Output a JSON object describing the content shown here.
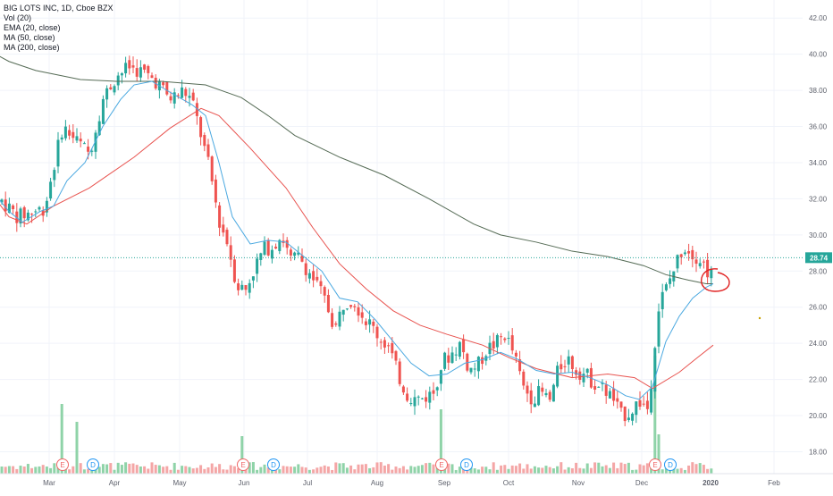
{
  "legend": {
    "title": "BIG LOTS INC, 1D, Cboe BZX",
    "vol": "Vol (20)",
    "ema": "EMA (20, close)",
    "ma50": "MA (50, close)",
    "ma200": "MA (200, close)"
  },
  "colors": {
    "up": "#26a69a",
    "down": "#ef5350",
    "vol_up": "#8fd3a8",
    "vol_down": "#f4a6a6",
    "ema": "#4aa8e0",
    "ma50": "#e8534f",
    "ma200": "#556b55",
    "last_price_line": "#26a69a",
    "grid": "#f0f3fa",
    "annotation": "#e02020"
  },
  "chart_data": {
    "type": "candlestick",
    "title": "BIG LOTS INC, 1D, Cboe BZX",
    "ylim": [
      17,
      43
    ],
    "y_ticks": [
      "18.00",
      "20.00",
      "22.00",
      "24.00",
      "26.00",
      "28.00",
      "30.00",
      "32.00",
      "34.00",
      "36.00",
      "38.00",
      "40.00",
      "42.00"
    ],
    "x_ticks": [
      "Mar",
      "Apr",
      "May",
      "Jun",
      "Jul",
      "Aug",
      "Sep",
      "Oct",
      "Nov",
      "Dec",
      "2020",
      "Feb"
    ],
    "last_price": "28.74",
    "events": [
      {
        "label": "E",
        "date": "Mar 6"
      },
      {
        "label": "D",
        "date": "Mar 15"
      },
      {
        "label": "E",
        "date": "May 30"
      },
      {
        "label": "D",
        "date": "Jun 10"
      },
      {
        "label": "E",
        "date": "Aug 28"
      },
      {
        "label": "D",
        "date": "Sep 10"
      },
      {
        "label": "E",
        "date": "Dec 4"
      },
      {
        "label": "D",
        "date": "Dec 15"
      }
    ],
    "ma200": [
      [
        -5,
        40
      ],
      [
        10,
        39.6
      ],
      [
        40,
        39.1
      ],
      [
        90,
        38.6
      ],
      [
        130,
        38.5
      ],
      [
        180,
        38.5
      ],
      [
        230,
        38.3
      ],
      [
        270,
        37.6
      ],
      [
        300,
        36.6
      ],
      [
        330,
        35.5
      ],
      [
        380,
        34.3
      ],
      [
        430,
        33.3
      ],
      [
        480,
        32.0
      ],
      [
        530,
        30.6
      ],
      [
        560,
        30.0
      ],
      [
        600,
        29.6
      ],
      [
        640,
        29.1
      ],
      [
        680,
        28.8
      ],
      [
        720,
        28.3
      ],
      [
        745,
        27.8
      ],
      [
        770,
        27.5
      ],
      [
        790,
        27.3
      ],
      [
        798,
        27.3
      ]
    ],
    "ma50": [
      [
        -5,
        32.0
      ],
      [
        10,
        31.0
      ],
      [
        30,
        30.6
      ],
      [
        60,
        31.6
      ],
      [
        100,
        32.6
      ],
      [
        150,
        34.3
      ],
      [
        190,
        35.9
      ],
      [
        225,
        37.0
      ],
      [
        245,
        36.6
      ],
      [
        280,
        34.8
      ],
      [
        320,
        32.6
      ],
      [
        350,
        30.4
      ],
      [
        380,
        28.4
      ],
      [
        410,
        27.0
      ],
      [
        440,
        25.8
      ],
      [
        470,
        25.0
      ],
      [
        500,
        24.5
      ],
      [
        540,
        23.9
      ],
      [
        570,
        23.2
      ],
      [
        600,
        22.6
      ],
      [
        640,
        22.1
      ],
      [
        680,
        22.3
      ],
      [
        710,
        22.1
      ],
      [
        730,
        21.5
      ],
      [
        760,
        22.4
      ],
      [
        780,
        23.2
      ],
      [
        798,
        23.9
      ]
    ],
    "ema20": [
      [
        -5,
        32.2
      ],
      [
        10,
        31.3
      ],
      [
        25,
        30.7
      ],
      [
        45,
        31.3
      ],
      [
        60,
        31.6
      ],
      [
        75,
        33.0
      ],
      [
        95,
        34.0
      ],
      [
        115,
        36.0
      ],
      [
        135,
        37.5
      ],
      [
        150,
        38.3
      ],
      [
        170,
        38.5
      ],
      [
        190,
        37.9
      ],
      [
        215,
        37.2
      ],
      [
        230,
        36.6
      ],
      [
        245,
        34.0
      ],
      [
        260,
        31.0
      ],
      [
        280,
        29.5
      ],
      [
        300,
        29.7
      ],
      [
        320,
        29.6
      ],
      [
        340,
        28.8
      ],
      [
        360,
        28.0
      ],
      [
        380,
        26.5
      ],
      [
        400,
        26.3
      ],
      [
        420,
        25.3
      ],
      [
        440,
        24.1
      ],
      [
        460,
        22.9
      ],
      [
        480,
        22.2
      ],
      [
        500,
        22.3
      ],
      [
        520,
        22.9
      ],
      [
        540,
        23.1
      ],
      [
        560,
        23.5
      ],
      [
        580,
        23.1
      ],
      [
        600,
        22.5
      ],
      [
        620,
        22.3
      ],
      [
        640,
        22.4
      ],
      [
        660,
        22.1
      ],
      [
        680,
        21.7
      ],
      [
        700,
        21.1
      ],
      [
        715,
        20.9
      ],
      [
        730,
        21.6
      ],
      [
        745,
        24.1
      ],
      [
        760,
        25.5
      ],
      [
        775,
        26.5
      ],
      [
        790,
        27.1
      ],
      [
        798,
        27.3
      ]
    ]
  }
}
